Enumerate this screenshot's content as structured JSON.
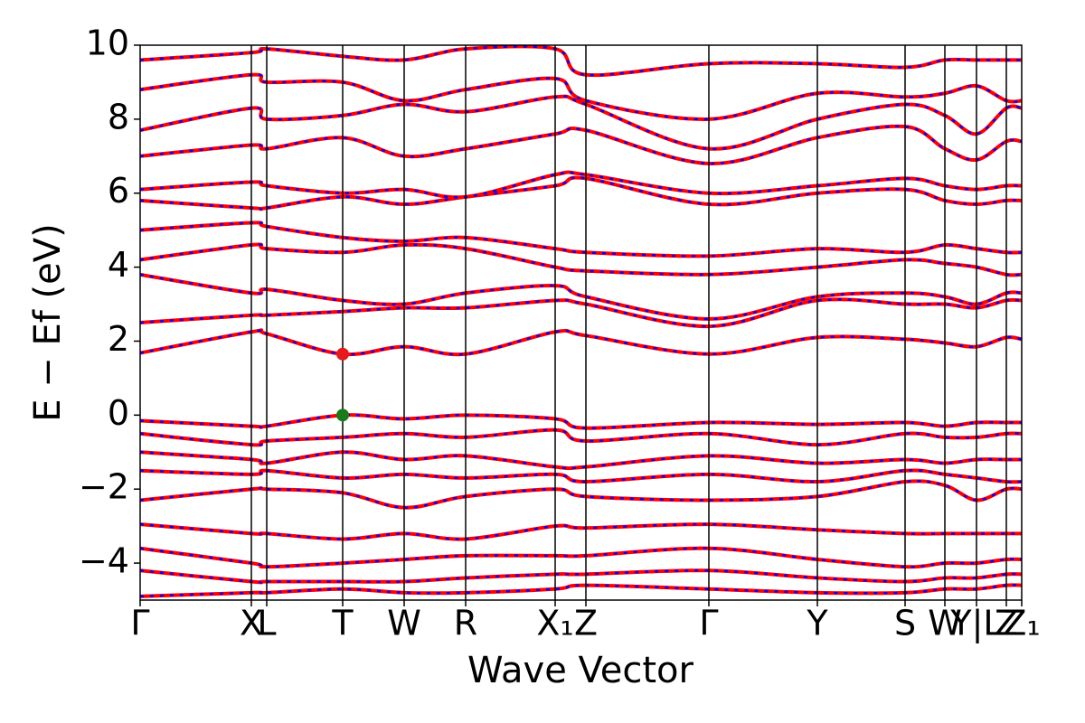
{
  "chart_data": {
    "type": "line",
    "xlabel": "Wave Vector",
    "ylabel": "E − Ef (eV)",
    "line_color": "#ff0000",
    "dash_color": "#0000ff",
    "xlim": [
      0,
      9.75
    ],
    "ylim": [
      -5,
      10
    ],
    "yticks": [
      {
        "value": -4,
        "label": "−4"
      },
      {
        "value": -2,
        "label": "−2"
      },
      0,
      2,
      4,
      6,
      8,
      10
    ],
    "xticks": [
      {
        "value": 0,
        "label": "Γ"
      },
      {
        "value": 1.23,
        "label": "X"
      },
      {
        "value": 1.4,
        "label": "L"
      },
      {
        "value": 2.24,
        "label": "T"
      },
      {
        "value": 2.92,
        "label": "W"
      },
      {
        "value": 3.6,
        "label": "R"
      },
      {
        "value": 4.59,
        "label": "X₁"
      },
      {
        "value": 4.93,
        "label": "Z"
      },
      {
        "value": 6.29,
        "label": "Γ"
      },
      {
        "value": 7.49,
        "label": "Y"
      },
      {
        "value": 8.46,
        "label": "S"
      },
      {
        "value": 8.9,
        "label": "W"
      },
      {
        "value": 9.25,
        "label": "Y|L"
      },
      {
        "value": 9.58,
        "label": "Z"
      },
      {
        "value": 9.75,
        "label": "Z₁"
      }
    ],
    "x": [
      0,
      1.23,
      1.4,
      2.24,
      2.92,
      3.6,
      4.59,
      4.93,
      6.29,
      7.49,
      8.46,
      8.9,
      9.25,
      9.58,
      9.75
    ],
    "series": [
      {
        "values": [
          -4.9,
          -4.8,
          -4.8,
          -4.7,
          -4.8,
          -4.8,
          -4.7,
          -4.6,
          -4.7,
          -4.8,
          -4.8,
          -4.7,
          -4.7,
          -4.6,
          -4.6
        ]
      },
      {
        "values": [
          -4.2,
          -4.5,
          -4.5,
          -4.5,
          -4.5,
          -4.4,
          -4.3,
          -4.3,
          -4.2,
          -4.4,
          -4.5,
          -4.4,
          -4.4,
          -4.3,
          -4.3
        ]
      },
      {
        "values": [
          -3.6,
          -4.0,
          -4.1,
          -4.0,
          -3.9,
          -3.8,
          -3.8,
          -3.8,
          -3.6,
          -3.9,
          -4.1,
          -4.0,
          -4.0,
          -3.9,
          -3.9
        ]
      },
      {
        "values": [
          -2.95,
          -3.2,
          -3.2,
          -3.35,
          -3.2,
          -3.35,
          -3.0,
          -3.05,
          -2.95,
          -3.1,
          -3.2,
          -3.2,
          -3.2,
          -3.2,
          -3.2
        ]
      },
      {
        "values": [
          -2.3,
          -2.0,
          -2.0,
          -2.1,
          -2.5,
          -2.2,
          -2.0,
          -2.2,
          -2.3,
          -2.2,
          -1.8,
          -1.9,
          -2.3,
          -2.0,
          -2.0
        ]
      },
      {
        "values": [
          -1.5,
          -1.6,
          -1.5,
          -1.7,
          -1.6,
          -1.7,
          -1.6,
          -1.8,
          -1.6,
          -1.8,
          -1.5,
          -1.6,
          -1.7,
          -1.8,
          -1.8
        ]
      },
      {
        "values": [
          -1.0,
          -1.2,
          -1.3,
          -1.0,
          -1.2,
          -1.1,
          -1.4,
          -1.4,
          -1.1,
          -1.3,
          -1.2,
          -1.3,
          -1.2,
          -1.2,
          -1.2
        ]
      },
      {
        "values": [
          -0.5,
          -0.8,
          -0.7,
          -0.6,
          -0.5,
          -0.6,
          -0.4,
          -0.7,
          -0.5,
          -0.8,
          -0.5,
          -0.6,
          -0.6,
          -0.5,
          -0.5
        ]
      },
      {
        "values": [
          -0.15,
          -0.3,
          -0.3,
          0.0,
          -0.1,
          0.0,
          -0.1,
          -0.35,
          -0.2,
          -0.25,
          -0.2,
          -0.3,
          -0.2,
          -0.2,
          -0.2
        ]
      },
      {
        "values": [
          1.68,
          2.25,
          2.2,
          1.65,
          1.85,
          1.65,
          2.25,
          2.15,
          1.65,
          2.1,
          2.05,
          1.95,
          1.85,
          2.1,
          2.05
        ]
      },
      {
        "values": [
          2.5,
          2.7,
          2.7,
          2.8,
          2.9,
          2.9,
          3.1,
          3.0,
          2.4,
          3.1,
          3.0,
          3.0,
          2.9,
          3.1,
          3.1
        ]
      },
      {
        "values": [
          3.8,
          3.3,
          3.4,
          3.1,
          3.0,
          3.3,
          3.5,
          3.2,
          2.6,
          3.2,
          3.3,
          3.2,
          3.0,
          3.3,
          3.3
        ]
      },
      {
        "values": [
          4.2,
          4.6,
          4.5,
          4.4,
          4.6,
          4.5,
          4.0,
          3.9,
          3.8,
          4.0,
          4.2,
          4.1,
          4.0,
          3.8,
          3.8
        ]
      },
      {
        "values": [
          5.0,
          5.2,
          5.1,
          4.8,
          4.7,
          4.8,
          4.5,
          4.4,
          4.3,
          4.5,
          4.4,
          4.6,
          4.5,
          4.4,
          4.4
        ]
      },
      {
        "values": [
          5.8,
          5.6,
          5.6,
          5.9,
          5.7,
          5.9,
          6.2,
          6.4,
          5.7,
          6.0,
          6.1,
          5.8,
          5.7,
          5.8,
          5.8
        ]
      },
      {
        "values": [
          6.1,
          6.3,
          6.2,
          6.0,
          6.1,
          5.9,
          6.5,
          6.5,
          6.0,
          6.2,
          6.4,
          6.2,
          6.1,
          6.2,
          6.2
        ]
      },
      {
        "values": [
          7.0,
          7.3,
          7.2,
          7.5,
          7.0,
          7.2,
          7.6,
          7.7,
          6.8,
          7.5,
          7.8,
          7.2,
          6.9,
          7.4,
          7.4
        ]
      },
      {
        "values": [
          7.7,
          8.3,
          8.0,
          8.1,
          8.4,
          8.2,
          8.6,
          8.4,
          7.2,
          8.0,
          8.4,
          8.1,
          7.6,
          8.3,
          8.3
        ]
      },
      {
        "values": [
          8.8,
          9.2,
          9.0,
          9.0,
          8.5,
          8.8,
          9.1,
          8.5,
          8.0,
          8.7,
          8.6,
          8.7,
          8.9,
          8.5,
          8.5
        ]
      },
      {
        "values": [
          9.6,
          9.8,
          9.9,
          9.7,
          9.6,
          9.9,
          9.9,
          9.2,
          9.5,
          9.5,
          9.4,
          9.6,
          9.6,
          9.6,
          9.6
        ]
      }
    ],
    "markers": [
      {
        "x": 2.24,
        "y": 1.65,
        "color": "#e41a1c"
      },
      {
        "x": 2.24,
        "y": 0,
        "color": "#1a7a1a"
      }
    ]
  }
}
